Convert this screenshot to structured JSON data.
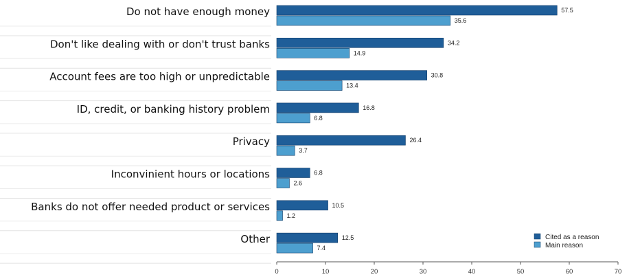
{
  "chart_data": {
    "type": "bar",
    "orientation": "horizontal",
    "categories": [
      "Do  not have enough money",
      "Don't like dealing with or don't trust banks",
      "Account fees are too high or unpredictable",
      "ID, credit, or banking history problem",
      "Privacy",
      "Inconvinient hours or locations",
      "Banks do not offer needed product or services",
      "Other"
    ],
    "series": [
      {
        "name": "Cited as a reason",
        "color": "#1f5e99",
        "values": [
          57.5,
          34.2,
          30.8,
          16.8,
          26.4,
          6.8,
          10.5,
          12.5
        ]
      },
      {
        "name": "Main reason",
        "color": "#4d9fcf",
        "values": [
          35.6,
          14.9,
          13.4,
          6.8,
          3.7,
          2.6,
          1.2,
          7.4
        ]
      }
    ],
    "value_labels": [
      [
        "57.5",
        "35.6"
      ],
      [
        "34.2",
        "14.9"
      ],
      [
        "30.8",
        "13.4"
      ],
      [
        "16.8",
        "6.8"
      ],
      [
        "26.4",
        "3.7"
      ],
      [
        "6.8",
        "2.6"
      ],
      [
        "10.5",
        "1.2"
      ],
      [
        "12.5",
        "7.4"
      ]
    ],
    "xlim": [
      0,
      70
    ],
    "xticks": [
      "0",
      "10",
      "20",
      "30",
      "40",
      "50",
      "60",
      "70"
    ],
    "legend_position": "bottom-right",
    "grid": false
  }
}
